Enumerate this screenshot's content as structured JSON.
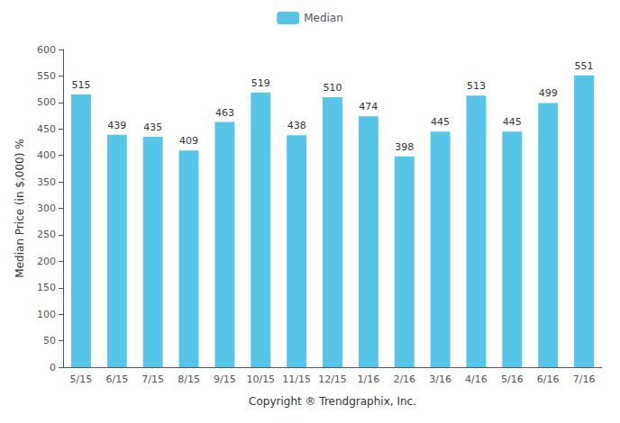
{
  "chart_data": {
    "type": "bar",
    "categories": [
      "5/15",
      "6/15",
      "7/15",
      "8/15",
      "9/15",
      "10/15",
      "11/15",
      "12/15",
      "1/16",
      "2/16",
      "3/16",
      "4/16",
      "5/16",
      "6/16",
      "7/16"
    ],
    "series": [
      {
        "name": "Median",
        "color": "#56C5E8",
        "values": [
          515,
          439,
          435,
          409,
          463,
          519,
          438,
          510,
          474,
          398,
          445,
          513,
          445,
          499,
          551
        ]
      }
    ],
    "xlabel": "Copyright ® Trendgraphix, Inc.",
    "ylabel": "Median Price (in $,000) %",
    "ylim": [
      0,
      600
    ],
    "yticks": [
      0,
      50,
      100,
      150,
      200,
      250,
      300,
      350,
      400,
      450,
      500,
      550,
      600
    ],
    "grid": false,
    "legend": "top",
    "data_labels": true
  }
}
